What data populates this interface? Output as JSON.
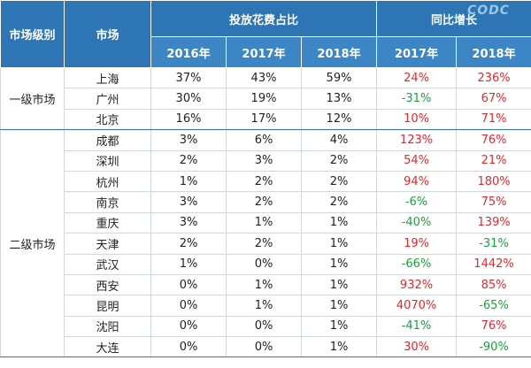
{
  "watermark": "CODC",
  "colors": {
    "header": "#2e75b6",
    "header_light": "#3d86c6",
    "up": "#e8262b",
    "down": "#1ea03c"
  },
  "table": {
    "header": {
      "level": "市场级别",
      "market": "市场",
      "share": "投放花费占比",
      "growth": "同比增长",
      "share_years": [
        "2016年",
        "2017年",
        "2018年"
      ],
      "growth_years": [
        "2017年",
        "2018年"
      ]
    },
    "groups": [
      {
        "level": "一级市场",
        "rows": [
          {
            "market": "上海",
            "share": [
              "37%",
              "43%",
              "59%"
            ],
            "growth": [
              "24%",
              "236%"
            ]
          },
          {
            "market": "广州",
            "share": [
              "30%",
              "19%",
              "13%"
            ],
            "growth": [
              "-31%",
              "67%"
            ]
          },
          {
            "market": "北京",
            "share": [
              "16%",
              "17%",
              "12%"
            ],
            "growth": [
              "10%",
              "71%"
            ]
          }
        ]
      },
      {
        "level": "二级市场",
        "rows": [
          {
            "market": "成都",
            "share": [
              "3%",
              "6%",
              "4%"
            ],
            "growth": [
              "123%",
              "76%"
            ]
          },
          {
            "market": "深圳",
            "share": [
              "2%",
              "3%",
              "2%"
            ],
            "growth": [
              "54%",
              "21%"
            ]
          },
          {
            "market": "杭州",
            "share": [
              "1%",
              "2%",
              "2%"
            ],
            "growth": [
              "94%",
              "180%"
            ]
          },
          {
            "market": "南京",
            "share": [
              "3%",
              "2%",
              "2%"
            ],
            "growth": [
              "-6%",
              "75%"
            ]
          },
          {
            "market": "重庆",
            "share": [
              "3%",
              "1%",
              "1%"
            ],
            "growth": [
              "-40%",
              "139%"
            ]
          },
          {
            "market": "天津",
            "share": [
              "2%",
              "2%",
              "1%"
            ],
            "growth": [
              "19%",
              "-31%"
            ]
          },
          {
            "market": "武汉",
            "share": [
              "1%",
              "0%",
              "1%"
            ],
            "growth": [
              "-66%",
              "1442%"
            ]
          },
          {
            "market": "西安",
            "share": [
              "0%",
              "1%",
              "1%"
            ],
            "growth": [
              "932%",
              "85%"
            ]
          },
          {
            "market": "昆明",
            "share": [
              "0%",
              "1%",
              "1%"
            ],
            "growth": [
              "4070%",
              "-65%"
            ]
          },
          {
            "market": "沈阳",
            "share": [
              "0%",
              "0%",
              "1%"
            ],
            "growth": [
              "-41%",
              "76%"
            ]
          },
          {
            "market": "大连",
            "share": [
              "0%",
              "0%",
              "1%"
            ],
            "growth": [
              "30%",
              "-90%"
            ]
          }
        ]
      }
    ]
  }
}
